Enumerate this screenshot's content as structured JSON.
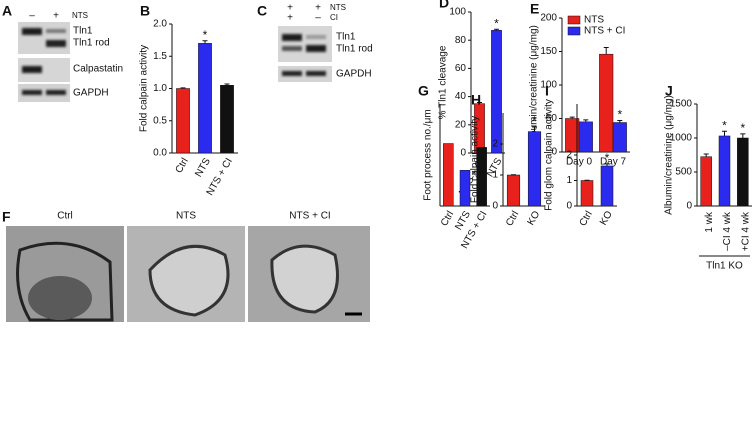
{
  "blot_a": {
    "letter": "A",
    "lane_signs": [
      "–",
      "+"
    ],
    "treatment": "NTS",
    "bands": [
      "Tln1",
      "Tln1 rod",
      "Calpastatin",
      "GAPDH"
    ]
  },
  "blot_c": {
    "letter": "C",
    "rows": [
      {
        "signs": [
          "+",
          "+"
        ],
        "label": "NTS"
      },
      {
        "signs": [
          "+",
          "–"
        ],
        "label": "CI"
      }
    ],
    "bands": [
      "Tln1",
      "Tln1 rod",
      "GAPDH"
    ]
  },
  "micrographs": {
    "letter": "F",
    "labels": [
      "Ctrl",
      "NTS",
      "NTS + CI"
    ]
  },
  "chart_data": [
    {
      "type": "bar",
      "panel": "B",
      "y_label": "Fold calpain activity",
      "categories": [
        "Ctrl",
        "NTS",
        "NTS + CI"
      ],
      "values": [
        1.0,
        1.7,
        1.05
      ],
      "errors": [
        0.01,
        0.04,
        0.02
      ],
      "colors": [
        "#e8211d",
        "#2b2bf0",
        "#111111"
      ],
      "significance": [
        null,
        "*",
        null
      ],
      "ylim": [
        0,
        2
      ],
      "yticks": [
        {
          "value": 0,
          "label": "0.0"
        },
        {
          "value": 0.5,
          "label": "0.5"
        },
        {
          "value": 1,
          "label": "1.0"
        },
        {
          "value": 1.5,
          "label": "1.5"
        },
        {
          "value": 2,
          "label": "2.0"
        }
      ]
    },
    {
      "type": "bar",
      "panel": "D",
      "y_label": "% Tln1 cleavage",
      "categories": [
        "NTS + CI",
        "NTS"
      ],
      "values": [
        35,
        87
      ],
      "errors": [
        0.8,
        0.8
      ],
      "colors": [
        "#e8211d",
        "#2b2bf0"
      ],
      "significance": [
        null,
        "*"
      ],
      "ylim": [
        0,
        100
      ],
      "yticks": [
        0,
        20,
        40,
        60,
        80,
        100
      ]
    },
    {
      "type": "grouped_bar",
      "panel": "E",
      "y_label": "Albumin/creatinine (μg/mg)",
      "categories": [
        "Day 0",
        "Day 7"
      ],
      "series": [
        {
          "name": "NTS",
          "color": "#e8211d",
          "values": [
            50,
            146
          ],
          "errors": [
            2,
            10
          ],
          "significance": [
            null,
            null
          ]
        },
        {
          "name": "NTS + CI",
          "color": "#2b2bf0",
          "values": [
            45,
            44
          ],
          "errors": [
            3,
            3
          ],
          "significance": [
            null,
            "*"
          ]
        }
      ],
      "ylim": [
        0,
        200
      ],
      "yticks": [
        0,
        50,
        100,
        150,
        200
      ]
    },
    {
      "type": "bar",
      "panel": "G",
      "y_label": "Foot process no./μm",
      "categories": [
        "Ctrl",
        "NTS",
        "NTS + CI"
      ],
      "values": [
        2.45,
        1.4,
        2.3
      ],
      "colors": [
        "#e8211d",
        "#2b2bf0",
        "#111111"
      ],
      "significance": [
        null,
        null,
        null
      ],
      "ylim": [
        0,
        4
      ]
    },
    {
      "type": "bar",
      "panel": "H",
      "y_label": "Fold calpain activity",
      "categories": [
        "Ctrl",
        "KO"
      ],
      "values": [
        1,
        2.4
      ],
      "errors": [
        0.01,
        0.15
      ],
      "colors": [
        "#e8211d",
        "#2b2bf0"
      ],
      "significance": [
        null,
        "*"
      ],
      "ylim": [
        0,
        3
      ],
      "yticks": [
        0,
        1,
        2
      ]
    },
    {
      "type": "bar",
      "panel": "I",
      "y_label": "Fold glom calpain activity",
      "categories": [
        "Ctrl",
        "KO"
      ],
      "values": [
        1,
        1.57
      ],
      "errors": [
        0.01,
        0.08
      ],
      "colors": [
        "#e8211d",
        "#2b2bf0"
      ],
      "significance": [
        null,
        "*"
      ],
      "ylim": [
        0,
        4
      ],
      "yticks": [
        0,
        1,
        2
      ]
    },
    {
      "type": "bar",
      "panel": "J",
      "y_label": "Albumin/creatinine (μg/mg)",
      "categories": [
        "1 wk",
        "–CI 4 wk",
        "+CI 4 wk"
      ],
      "values": [
        725,
        1030,
        1000
      ],
      "errors": [
        40,
        70,
        60
      ],
      "colors": [
        "#e8211d",
        "#2b2bf0",
        "#111111"
      ],
      "significance": [
        null,
        "*",
        "*"
      ],
      "group_label": "Tln1 KO",
      "ylim": [
        0,
        1500
      ],
      "yticks": [
        0,
        500,
        1000,
        1500
      ]
    }
  ]
}
